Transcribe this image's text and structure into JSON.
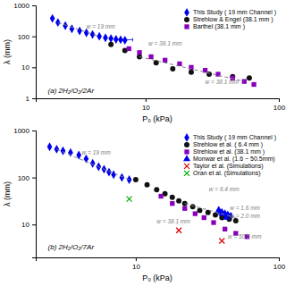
{
  "chart_data": [
    {
      "type": "scatter",
      "title": "(a) 2H₂/O₂/2Ar",
      "x_label": "P₀ (kPa)",
      "y_label": "λ (mm)",
      "log": true,
      "grid": false,
      "legend": "upper right",
      "xlim": [
        1.5,
        100
      ],
      "ylim": [
        1,
        1000
      ],
      "xticks": [
        10,
        100
      ],
      "yticks": [
        1,
        10,
        100,
        1000
      ],
      "series": [
        {
          "name": "This Study ( 19 mm Channel )",
          "color": "#0000ee",
          "marker": "diamond",
          "x": [
            2.0,
            2.2,
            2.5,
            2.8,
            3.2,
            3.6,
            4.0,
            4.5,
            5.0,
            5.5,
            6.0,
            6.5,
            7.0
          ],
          "values": [
            380,
            280,
            220,
            175,
            150,
            130,
            115,
            100,
            90,
            85,
            80,
            78,
            75
          ],
          "xerr_low": [
            null,
            null,
            null,
            null,
            null,
            null,
            null,
            null,
            null,
            null,
            null,
            0.5,
            null
          ],
          "xerr_high": [
            null,
            null,
            null,
            null,
            null,
            null,
            null,
            null,
            null,
            null,
            null,
            1.5,
            null
          ]
        },
        {
          "name": "Strehlow & Engel (38.1 mm )",
          "color": "#111111",
          "marker": "circle",
          "x": [
            5.5,
            7.0,
            9.0,
            12.0,
            16.0,
            22.0,
            30.0,
            45.0,
            60.0
          ],
          "values": [
            55,
            35,
            22,
            14,
            9,
            7,
            6,
            5,
            4.5
          ]
        },
        {
          "name": "Barthel (38.1 mm )",
          "color": "#8800bb",
          "marker": "square",
          "x": [
            7.5,
            9.0,
            11.0,
            14.0,
            18.0,
            22.0,
            28.0,
            35.0,
            45.0,
            55.0,
            65.0
          ],
          "values": [
            40,
            30,
            22,
            17,
            13,
            10,
            8,
            6,
            4.5,
            3.5,
            2.8
          ]
        },
        {
          "type": "line",
          "line_style": "dashed",
          "color": "gray",
          "x": [
            2.2,
            4.5
          ],
          "values": [
            280,
            100
          ]
        },
        {
          "type": "line",
          "line_style": "dashed",
          "color": "gray",
          "x": [
            9.0,
            55.0
          ],
          "values": [
            22,
            3.5
          ]
        }
      ],
      "annotations": [
        {
          "text": "w = 19 mm",
          "x": 3.6,
          "y": 175
        },
        {
          "text": "w = 38.1 mm",
          "x": 10.5,
          "y": 52
        },
        {
          "text": "w = 38.1 mm",
          "x": 28.0,
          "y": 2.8
        }
      ]
    },
    {
      "type": "scatter",
      "title": "(b) 2H₂/O₂/7Ar",
      "x_label": "P₀ (kPa)",
      "y_label": "λ (mm)",
      "log": true,
      "grid": false,
      "legend": "upper right",
      "xlim": [
        2,
        100
      ],
      "ylim": [
        2,
        1000
      ],
      "xticks": [
        10,
        100
      ],
      "yticks": [
        10,
        100,
        1000
      ],
      "series": [
        {
          "name": "This Study ( 19 mm Channel )",
          "color": "#0000ee",
          "marker": "diamond",
          "x": [
            2.5,
            2.8,
            3.1,
            3.5,
            4.0,
            4.5,
            5.0,
            5.5,
            6.0,
            6.5,
            7.0,
            8.0,
            9.0
          ],
          "values": [
            450,
            400,
            370,
            340,
            300,
            250,
            200,
            170,
            150,
            130,
            115,
            100,
            90
          ]
        },
        {
          "color": "#0000ee",
          "marker": "diamond",
          "x": [
            38.0,
            40.0,
            42.0,
            44.0,
            46.0
          ],
          "values": [
            20,
            18,
            17,
            16,
            15
          ],
          "xerr_low": [
            null,
            null,
            null,
            2.0,
            null
          ],
          "xerr_high": [
            null,
            null,
            null,
            3.0,
            null
          ]
        },
        {
          "name": "Strehlow et al. ( 6.4 mm )",
          "color": "#111111",
          "marker": "circle",
          "x": [
            10.0,
            12.0,
            14.0,
            16.0,
            18.0,
            20.0,
            22.0,
            25.0,
            28.0,
            32.0,
            36.0,
            40.0,
            45.0,
            50.0
          ],
          "values": [
            90,
            70,
            55,
            45,
            38,
            32,
            28,
            24,
            20,
            18,
            16,
            14,
            13,
            12
          ]
        },
        {
          "name": "Strehlow et al. (38.1 mm )",
          "color": "#8800bb",
          "marker": "square",
          "x": [
            15.0,
            18.0,
            22.0,
            26.0,
            30.0,
            35.0,
            42.0,
            50.0,
            60.0
          ],
          "values": [
            40,
            28,
            22,
            17,
            14,
            11,
            8,
            6.5,
            5.5
          ]
        },
        {
          "name": "Monwar et al. (1.6 − 50.5mm)",
          "color": "#0000ee",
          "marker": "triangle",
          "x": [
            38.0,
            40.0,
            43.0
          ],
          "values": [
            20,
            17,
            14
          ]
        },
        {
          "name": "Taylor et al. (Simulations)",
          "color": "#dd0000",
          "marker": "x",
          "x": [
            20.0,
            40.0
          ],
          "values": [
            7.5,
            4.5
          ]
        },
        {
          "name": "Oran et al. (Simulations)",
          "color": "#00aa00",
          "marker": "x",
          "x": [
            9.0
          ],
          "values": [
            35.0
          ]
        },
        {
          "type": "line",
          "line_style": "dashed",
          "color": "gray",
          "x": [
            2.8,
            9.0
          ],
          "values": [
            400,
            90
          ]
        },
        {
          "type": "line",
          "line_style": "dashed",
          "color": "gray",
          "x": [
            22.0,
            50.0
          ],
          "values": [
            28,
            14
          ]
        }
      ],
      "annotations": [
        {
          "text": "w = 19 mm",
          "x": 4.2,
          "y": 310
        },
        {
          "text": "w = 6.4 mm",
          "x": 32.5,
          "y": 52
        },
        {
          "text": "w = 38.1 mm",
          "x": 14.0,
          "y": 10.5
        },
        {
          "text": "w = 1.6 mm",
          "x": 45.5,
          "y": 20
        },
        {
          "text": "w = 2.0 mm",
          "x": 45.5,
          "y": 14
        },
        {
          "text": "w = 50.5 mm",
          "x": 44.0,
          "y": 5.0
        }
      ]
    }
  ]
}
